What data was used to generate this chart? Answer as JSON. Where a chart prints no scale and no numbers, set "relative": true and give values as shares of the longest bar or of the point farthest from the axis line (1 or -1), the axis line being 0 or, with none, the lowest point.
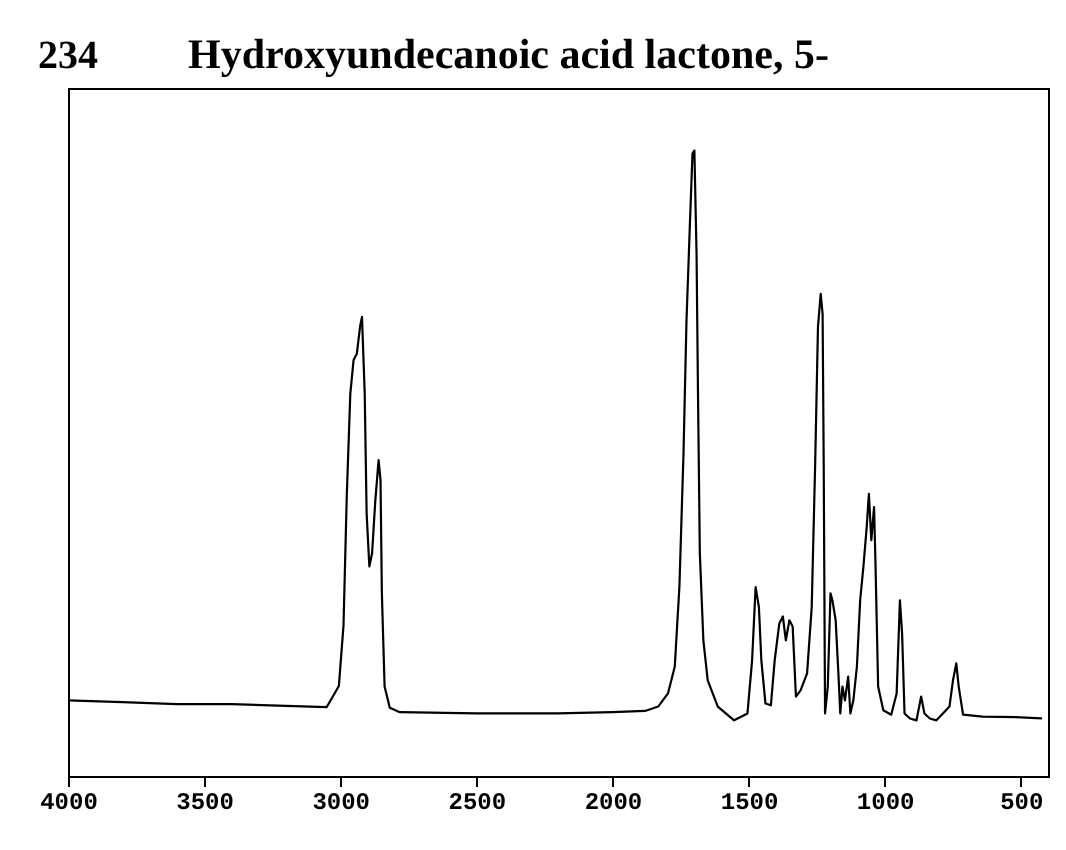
{
  "chart_data": {
    "type": "line",
    "title": "Hydroxyundecanoic acid lactone, 5-",
    "annotations": [
      "234"
    ],
    "relative": true,
    "xlim": [
      4000,
      400
    ],
    "xticks": [
      4000,
      3500,
      3000,
      2500,
      2000,
      1500,
      1000,
      500
    ],
    "tick_labels": "x",
    "grid": false,
    "legend": false,
    "marker": "none",
    "line_style": "solid",
    "series": [
      {
        "color": "#000000",
        "x": [
          4000,
          3800,
          3600,
          3400,
          3200,
          3050,
          3005,
          2988,
          2976,
          2963,
          2951,
          2939,
          2927,
          2920,
          2910,
          2903,
          2893,
          2883,
          2871,
          2859,
          2852,
          2847,
          2837,
          2818,
          2781,
          2500,
          2200,
          2000,
          1880,
          1832,
          1796,
          1771,
          1754,
          1739,
          1728,
          1715,
          1706,
          1699,
          1691,
          1686,
          1679,
          1666,
          1650,
          1613,
          1553,
          1504,
          1487,
          1474,
          1462,
          1453,
          1438,
          1418,
          1404,
          1387,
          1374,
          1363,
          1350,
          1338,
          1326,
          1309,
          1285,
          1268,
          1255,
          1245,
          1235,
          1228,
          1224,
          1219,
          1209,
          1199,
          1192,
          1180,
          1170,
          1163,
          1155,
          1146,
          1134,
          1126,
          1115,
          1102,
          1090,
          1078,
          1066,
          1058,
          1049,
          1039,
          1034,
          1024,
          1005,
          976,
          956,
          944,
          936,
          927,
          907,
          883,
          866,
          854,
          834,
          810,
          786,
          762,
          749,
          737,
          728,
          712,
          640,
          518,
          425
        ],
        "values": [
          0.121,
          0.118,
          0.115,
          0.115,
          0.112,
          0.11,
          0.144,
          0.24,
          0.447,
          0.611,
          0.665,
          0.675,
          0.719,
          0.734,
          0.611,
          0.42,
          0.335,
          0.356,
          0.441,
          0.505,
          0.473,
          0.292,
          0.143,
          0.109,
          0.102,
          0.1,
          0.1,
          0.102,
          0.104,
          0.111,
          0.132,
          0.175,
          0.303,
          0.515,
          0.728,
          0.888,
          0.995,
          1,
          0.835,
          0.622,
          0.356,
          0.217,
          0.153,
          0.111,
          0.089,
          0.1,
          0.185,
          0.302,
          0.27,
          0.185,
          0.116,
          0.113,
          0.185,
          0.244,
          0.255,
          0.217,
          0.249,
          0.239,
          0.127,
          0.137,
          0.164,
          0.27,
          0.505,
          0.718,
          0.771,
          0.739,
          0.505,
          0.1,
          0.143,
          0.292,
          0.281,
          0.249,
          0.164,
          0.1,
          0.143,
          0.121,
          0.159,
          0.1,
          0.121,
          0.175,
          0.281,
          0.335,
          0.398,
          0.451,
          0.377,
          0.43,
          0.345,
          0.143,
          0.105,
          0.098,
          0.132,
          0.281,
          0.228,
          0.1,
          0.092,
          0.089,
          0.127,
          0.1,
          0.092,
          0.089,
          0.1,
          0.111,
          0.153,
          0.18,
          0.143,
          0.098,
          0.095,
          0.094,
          0.092
        ]
      }
    ]
  }
}
